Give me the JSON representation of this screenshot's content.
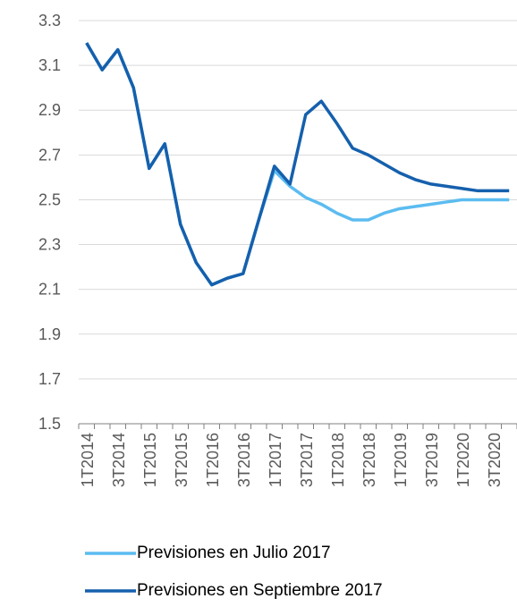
{
  "chart_data": {
    "type": "line",
    "categories": [
      "1T2014",
      null,
      "3T2014",
      null,
      "1T2015",
      null,
      "3T2015",
      null,
      "1T2016",
      null,
      "3T2016",
      null,
      "1T2017",
      null,
      "3T2017",
      null,
      "1T2018",
      null,
      "3T2018",
      null,
      "1T2019",
      null,
      "3T2019",
      null,
      "1T2020",
      null,
      "3T2020",
      null
    ],
    "series": [
      {
        "name": "Previsiones en Julio 2017",
        "color": "#5bbcf0",
        "values": [
          3.2,
          3.08,
          3.17,
          3.0,
          2.64,
          2.75,
          2.39,
          2.22,
          2.12,
          2.15,
          2.17,
          2.41,
          2.63,
          2.56,
          2.51,
          2.48,
          2.44,
          2.41,
          2.41,
          2.44,
          2.46,
          2.47,
          2.48,
          2.49,
          2.5,
          2.5,
          2.5,
          2.5
        ]
      },
      {
        "name": "Previsiones en Septiembre 2017",
        "color": "#1560ad",
        "values": [
          3.2,
          3.08,
          3.17,
          3.0,
          2.64,
          2.75,
          2.39,
          2.22,
          2.12,
          2.15,
          2.17,
          2.41,
          2.65,
          2.57,
          2.88,
          2.94,
          2.84,
          2.73,
          2.7,
          2.66,
          2.62,
          2.59,
          2.57,
          2.56,
          2.55,
          2.54,
          2.54,
          2.54
        ]
      }
    ],
    "ylim": [
      1.5,
      3.3
    ],
    "yticks": [
      1.5,
      1.7,
      1.9,
      2.1,
      2.3,
      2.5,
      2.7,
      2.9,
      3.1,
      3.3
    ],
    "grid": true
  }
}
